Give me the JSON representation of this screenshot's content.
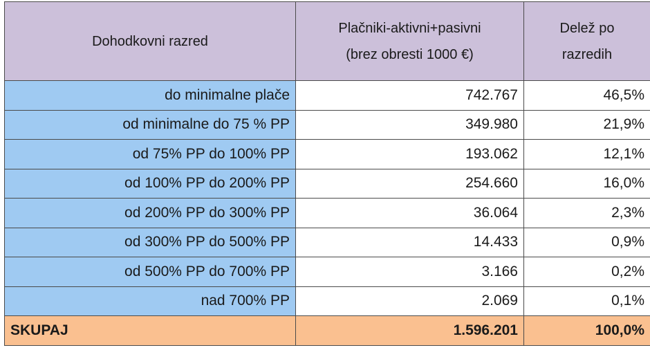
{
  "table": {
    "header": [
      [
        "Dohodkovni razred"
      ],
      [
        "Plačniki-aktivni+pasivni",
        "(brez obresti 1000 €)"
      ],
      [
        "Delež po",
        "razredih"
      ]
    ],
    "rows": [
      [
        "do minimalne plače",
        "742.767",
        "46,5%"
      ],
      [
        "od minimalne do 75 % PP",
        "349.980",
        "21,9%"
      ],
      [
        "od 75% PP do 100% PP",
        "193.062",
        "12,1%"
      ],
      [
        "od 100% PP do 200% PP",
        "254.660",
        "16,0%"
      ],
      [
        "od 200% PP do 300% PP",
        "36.064",
        "2,3%"
      ],
      [
        "od 300% PP do 500% PP",
        "14.433",
        "0,9%"
      ],
      [
        "od 500% PP do 700% PP",
        "3.166",
        "0,2%"
      ],
      [
        "nad 700% PP",
        "2.069",
        "0,1%"
      ]
    ],
    "total": [
      "SKUPAJ",
      "1.596.201",
      "100,0%"
    ]
  }
}
